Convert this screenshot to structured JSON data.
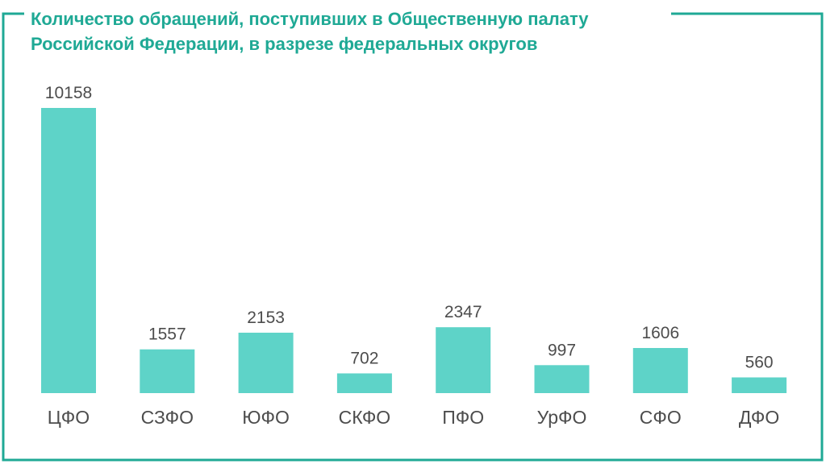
{
  "colors": {
    "frame": "#1fa995",
    "title": "#1fa995",
    "bar": "#5ed3c8",
    "label": "#4d4d4d"
  },
  "chart_data": {
    "type": "bar",
    "title_lines": [
      "Количество обращений, поступивших в Общественную палату",
      "Российской Федерации, в разрезе федеральных округов"
    ],
    "categories": [
      "ЦФО",
      "СЗФО",
      "ЮФО",
      "СКФО",
      "ПФО",
      "УрФО",
      "СФО",
      "ДФО"
    ],
    "values": [
      10158,
      1557,
      2153,
      702,
      2347,
      997,
      1606,
      560
    ],
    "xlabel": "",
    "ylabel": "",
    "ylim": [
      0,
      10158
    ],
    "grid": false,
    "legend": "none"
  }
}
